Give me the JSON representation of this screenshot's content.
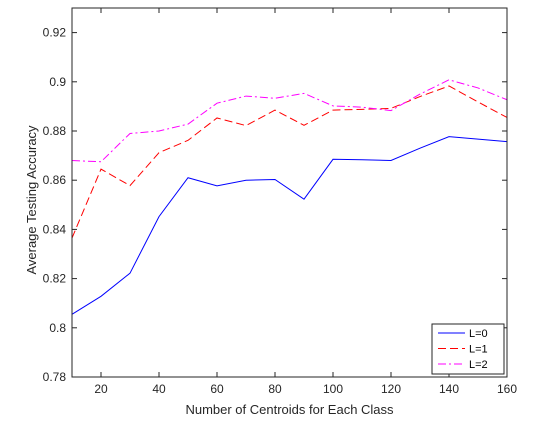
{
  "colors": {
    "background": "#ffffff",
    "axes": "#262626"
  },
  "chart_data": {
    "type": "line",
    "title": "",
    "xlabel": "Number of Centroids for Each Class",
    "ylabel": "Average Testing Accuracy",
    "xlim": [
      10,
      160
    ],
    "ylim": [
      0.78,
      0.93
    ],
    "xticks": [
      20,
      40,
      60,
      80,
      100,
      120,
      140,
      160
    ],
    "yticks": [
      0.78,
      0.8,
      0.82,
      0.84,
      0.86,
      0.88,
      0.9,
      0.92
    ],
    "ytick_labels": [
      "0.78",
      "0.8",
      "0.82",
      "0.84",
      "0.86",
      "0.88",
      "0.9",
      "0.92"
    ],
    "grid": false,
    "box": true,
    "legend_location": "bottom-right",
    "x": [
      10,
      20,
      30,
      40,
      50,
      60,
      70,
      80,
      90,
      100,
      110,
      120,
      130,
      140,
      150,
      160
    ],
    "series": [
      {
        "name": "L=0",
        "color": "#0000ff",
        "line_style": "solid",
        "values": [
          0.8055,
          0.8128,
          0.8222,
          0.8452,
          0.861,
          0.8577,
          0.86,
          0.8603,
          0.8523,
          0.8685,
          0.8683,
          0.868,
          0.873,
          0.8777,
          0.8767,
          0.8757
        ]
      },
      {
        "name": "L=1",
        "color": "#ff0000",
        "line_style": "dashed",
        "values": [
          0.8365,
          0.8645,
          0.8578,
          0.8712,
          0.8762,
          0.8853,
          0.8822,
          0.8885,
          0.8823,
          0.8885,
          0.8888,
          0.8892,
          0.894,
          0.8983,
          0.8918,
          0.8855
        ]
      },
      {
        "name": "L=2",
        "color": "#ff00ff",
        "line_style": "dashdot",
        "values": [
          0.868,
          0.8675,
          0.879,
          0.88,
          0.8828,
          0.8913,
          0.8942,
          0.8933,
          0.8953,
          0.8902,
          0.8897,
          0.8883,
          0.895,
          0.9008,
          0.8975,
          0.8927
        ]
      }
    ]
  }
}
